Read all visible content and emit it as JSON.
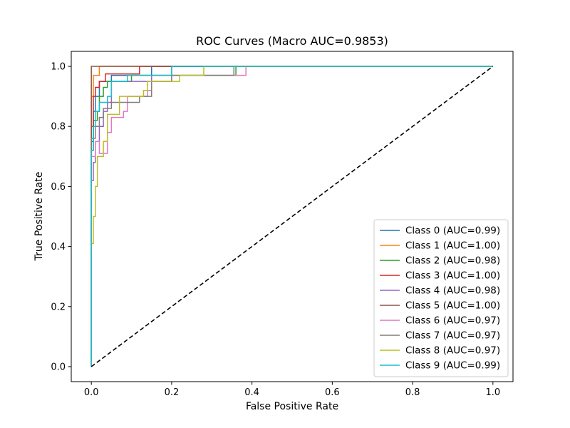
{
  "chart_data": {
    "type": "line",
    "title": "ROC Curves (Macro AUC=0.9853)",
    "xlabel": "False Positive Rate",
    "ylabel": "True Positive Rate",
    "xlim": [
      -0.05,
      1.05
    ],
    "ylim": [
      -0.05,
      1.05
    ],
    "xticks": [
      0.0,
      0.2,
      0.4,
      0.6,
      0.8,
      1.0
    ],
    "yticks": [
      0.0,
      0.2,
      0.4,
      0.6,
      0.8,
      1.0
    ],
    "xtick_labels": [
      "0.0",
      "0.2",
      "0.4",
      "0.6",
      "0.8",
      "1.0"
    ],
    "ytick_labels": [
      "0.0",
      "0.2",
      "0.4",
      "0.6",
      "0.8",
      "1.0"
    ],
    "grid": false,
    "legend_position": "lower-right",
    "reference_line": {
      "x": [
        0,
        1
      ],
      "y": [
        0,
        1
      ],
      "color": "#000000",
      "style": "dashed"
    },
    "series": [
      {
        "name": "Class 0 (AUC=0.99)",
        "color": "#1f77b4",
        "points": [
          [
            0,
            0
          ],
          [
            0,
            0.75
          ],
          [
            0.005,
            0.75
          ],
          [
            0.005,
            0.85
          ],
          [
            0.01,
            0.85
          ],
          [
            0.01,
            0.9
          ],
          [
            0.02,
            0.9
          ],
          [
            0.02,
            0.95
          ],
          [
            0.05,
            0.95
          ],
          [
            0.05,
            0.97
          ],
          [
            0.15,
            0.97
          ],
          [
            0.15,
            1.0
          ],
          [
            1,
            1
          ]
        ]
      },
      {
        "name": "Class 1 (AUC=1.00)",
        "color": "#ff7f0e",
        "points": [
          [
            0,
            0
          ],
          [
            0,
            0.9
          ],
          [
            0.005,
            0.9
          ],
          [
            0.005,
            0.97
          ],
          [
            0.02,
            0.97
          ],
          [
            0.02,
            1.0
          ],
          [
            1,
            1
          ]
        ]
      },
      {
        "name": "Class 2 (AUC=0.98)",
        "color": "#2ca02c",
        "points": [
          [
            0,
            0
          ],
          [
            0,
            0.72
          ],
          [
            0.005,
            0.72
          ],
          [
            0.005,
            0.82
          ],
          [
            0.015,
            0.82
          ],
          [
            0.015,
            0.85
          ],
          [
            0.02,
            0.85
          ],
          [
            0.02,
            0.9
          ],
          [
            0.03,
            0.9
          ],
          [
            0.03,
            0.93
          ],
          [
            0.04,
            0.93
          ],
          [
            0.04,
            0.95
          ],
          [
            0.1,
            0.95
          ],
          [
            0.1,
            0.97
          ],
          [
            0.36,
            0.97
          ],
          [
            0.36,
            1.0
          ],
          [
            1,
            1
          ]
        ]
      },
      {
        "name": "Class 3 (AUC=1.00)",
        "color": "#d62728",
        "points": [
          [
            0,
            0
          ],
          [
            0,
            0.8
          ],
          [
            0.005,
            0.8
          ],
          [
            0.005,
            0.9
          ],
          [
            0.01,
            0.9
          ],
          [
            0.01,
            0.93
          ],
          [
            0.02,
            0.93
          ],
          [
            0.02,
            0.95
          ],
          [
            0.035,
            0.95
          ],
          [
            0.035,
            0.975
          ],
          [
            0.12,
            0.975
          ],
          [
            0.12,
            1.0
          ],
          [
            1,
            1
          ]
        ]
      },
      {
        "name": "Class 4 (AUC=0.98)",
        "color": "#9467bd",
        "points": [
          [
            0,
            0
          ],
          [
            0,
            0.62
          ],
          [
            0.005,
            0.62
          ],
          [
            0.005,
            0.68
          ],
          [
            0.01,
            0.68
          ],
          [
            0.01,
            0.75
          ],
          [
            0.02,
            0.75
          ],
          [
            0.02,
            0.8
          ],
          [
            0.03,
            0.8
          ],
          [
            0.03,
            0.85
          ],
          [
            0.04,
            0.85
          ],
          [
            0.04,
            0.88
          ],
          [
            0.05,
            0.88
          ],
          [
            0.05,
            0.95
          ],
          [
            0.15,
            0.95
          ],
          [
            0.15,
            0.97
          ],
          [
            0.2,
            0.97
          ],
          [
            0.2,
            1.0
          ],
          [
            1,
            1
          ]
        ]
      },
      {
        "name": "Class 5 (AUC=1.00)",
        "color": "#8c564b",
        "points": [
          [
            0,
            0
          ],
          [
            0,
            1.0
          ],
          [
            1,
            1
          ]
        ]
      },
      {
        "name": "Class 6 (AUC=0.97)",
        "color": "#e377c2",
        "points": [
          [
            0,
            0
          ],
          [
            0,
            0.7
          ],
          [
            0.01,
            0.7
          ],
          [
            0.01,
            0.75
          ],
          [
            0.02,
            0.75
          ],
          [
            0.02,
            0.71
          ],
          [
            0.04,
            0.71
          ],
          [
            0.04,
            0.78
          ],
          [
            0.05,
            0.78
          ],
          [
            0.05,
            0.83
          ],
          [
            0.08,
            0.83
          ],
          [
            0.08,
            0.85
          ],
          [
            0.09,
            0.85
          ],
          [
            0.09,
            0.9
          ],
          [
            0.14,
            0.9
          ],
          [
            0.14,
            0.92
          ],
          [
            0.15,
            0.92
          ],
          [
            0.15,
            0.95
          ],
          [
            0.2,
            0.95
          ],
          [
            0.2,
            0.97
          ],
          [
            0.385,
            0.97
          ],
          [
            0.385,
            1.0
          ],
          [
            1,
            1
          ]
        ]
      },
      {
        "name": "Class 7 (AUC=0.97)",
        "color": "#7f7f7f",
        "points": [
          [
            0,
            0
          ],
          [
            0,
            0.76
          ],
          [
            0.01,
            0.76
          ],
          [
            0.01,
            0.8
          ],
          [
            0.02,
            0.8
          ],
          [
            0.02,
            0.83
          ],
          [
            0.03,
            0.83
          ],
          [
            0.03,
            0.86
          ],
          [
            0.05,
            0.86
          ],
          [
            0.05,
            0.88
          ],
          [
            0.12,
            0.88
          ],
          [
            0.12,
            0.9
          ],
          [
            0.15,
            0.9
          ],
          [
            0.15,
            0.95
          ],
          [
            0.2,
            0.95
          ],
          [
            0.2,
            0.97
          ],
          [
            0.355,
            0.97
          ],
          [
            0.355,
            1.0
          ],
          [
            1,
            1
          ]
        ]
      },
      {
        "name": "Class 8 (AUC=0.97)",
        "color": "#bcbd22",
        "points": [
          [
            0,
            0
          ],
          [
            0,
            0.41
          ],
          [
            0.005,
            0.41
          ],
          [
            0.005,
            0.5
          ],
          [
            0.01,
            0.5
          ],
          [
            0.01,
            0.6
          ],
          [
            0.015,
            0.6
          ],
          [
            0.015,
            0.7
          ],
          [
            0.03,
            0.7
          ],
          [
            0.03,
            0.75
          ],
          [
            0.04,
            0.75
          ],
          [
            0.04,
            0.84
          ],
          [
            0.07,
            0.84
          ],
          [
            0.07,
            0.9
          ],
          [
            0.13,
            0.9
          ],
          [
            0.13,
            0.92
          ],
          [
            0.14,
            0.92
          ],
          [
            0.14,
            0.95
          ],
          [
            0.22,
            0.95
          ],
          [
            0.22,
            0.97
          ],
          [
            0.28,
            0.97
          ],
          [
            0.28,
            1.0
          ],
          [
            1,
            1
          ]
        ]
      },
      {
        "name": "Class 9 (AUC=0.99)",
        "color": "#17becf",
        "points": [
          [
            0,
            0
          ],
          [
            0,
            0.72
          ],
          [
            0.005,
            0.72
          ],
          [
            0.005,
            0.8
          ],
          [
            0.01,
            0.8
          ],
          [
            0.01,
            0.85
          ],
          [
            0.02,
            0.85
          ],
          [
            0.02,
            0.88
          ],
          [
            0.04,
            0.88
          ],
          [
            0.04,
            0.9
          ],
          [
            0.05,
            0.9
          ],
          [
            0.05,
            0.95
          ],
          [
            0.09,
            0.95
          ],
          [
            0.09,
            0.97
          ],
          [
            0.2,
            0.97
          ],
          [
            0.2,
            1.0
          ],
          [
            1,
            1
          ]
        ]
      }
    ]
  }
}
